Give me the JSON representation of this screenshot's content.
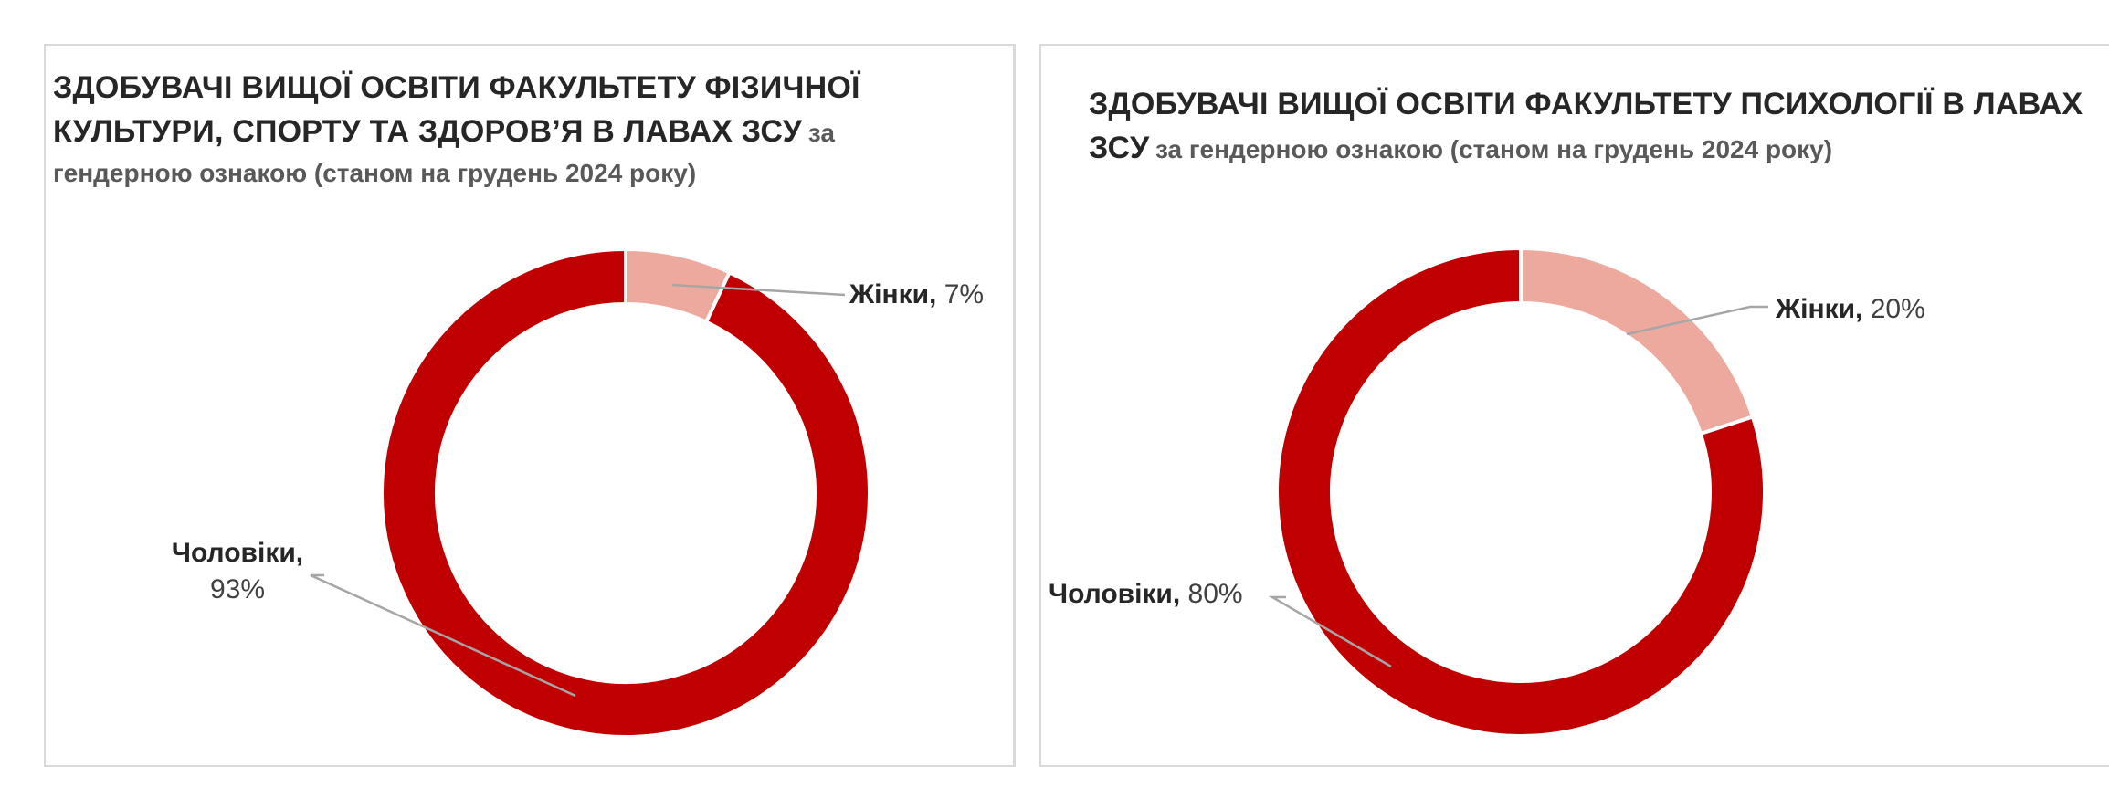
{
  "chart_data": [
    {
      "type": "pie",
      "donut": true,
      "title_main": "ЗДОБУВАЧІ ВИЩОЇ ОСВІТИ ФАКУЛЬТЕТУ ФІЗИЧНОЇ КУЛЬТУРИ, СПОРТУ ТА ЗДОРОВ’Я В ЛАВАХ ЗСУ",
      "title_sub": "за гендерною ознакою (станом на грудень 2024 року)",
      "slices": [
        {
          "category": "Жінки",
          "value": 7,
          "label_value": "7%",
          "color": "#eea99f"
        },
        {
          "category": "Чоловіки",
          "value": 93,
          "label_value": "93%",
          "color": "#c00000"
        }
      ],
      "legend": "none"
    },
    {
      "type": "pie",
      "donut": true,
      "title_main": "ЗДОБУВАЧІ ВИЩОЇ ОСВІТИ ФАКУЛЬТЕТУ ПСИХОЛОГІЇ В ЛАВАХ ЗСУ",
      "title_sub": "за гендерною ознакою (станом на грудень 2024 року)",
      "slices": [
        {
          "category": "Жінки",
          "value": 20,
          "label_value": "20%",
          "color": "#eea99f"
        },
        {
          "category": "Чоловіки",
          "value": 80,
          "label_value": "80%",
          "color": "#c00000"
        }
      ],
      "legend": "none"
    }
  ]
}
